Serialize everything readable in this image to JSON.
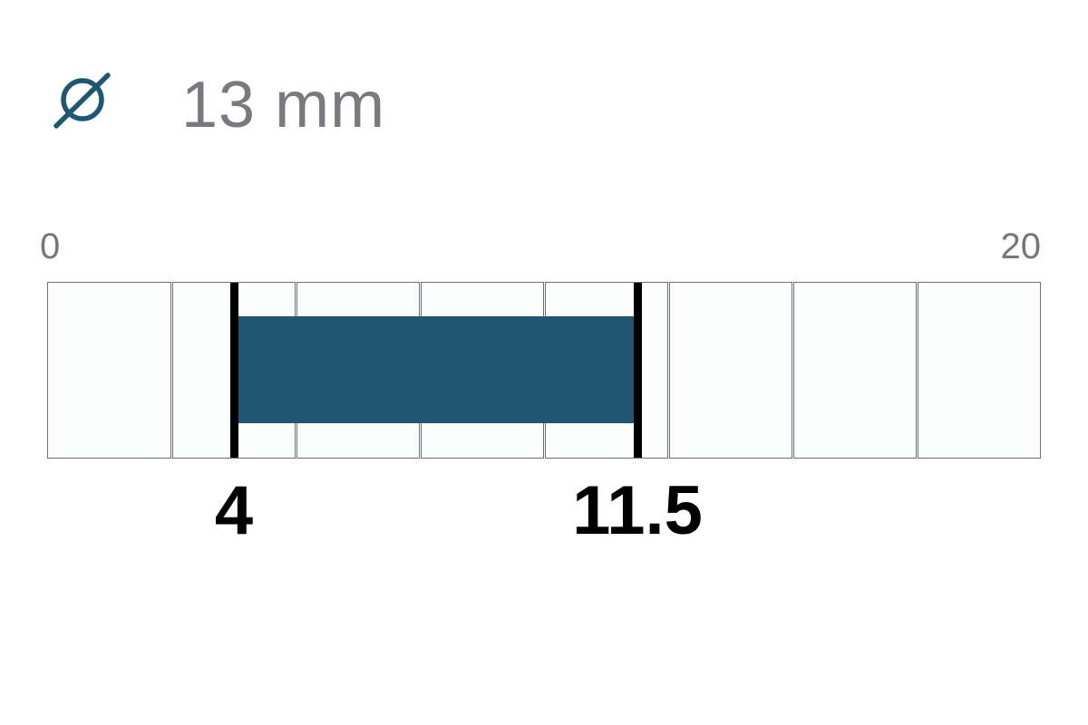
{
  "header": {
    "icon": "diameter-icon",
    "value_text": "13 mm"
  },
  "scale": {
    "min_label": "0",
    "max_label": "20",
    "min": 0,
    "max": 20,
    "segments": 8
  },
  "range": {
    "start": 4,
    "end": 11.5,
    "start_label": "4",
    "end_label": "11.5"
  },
  "colors": {
    "accent": "#1f5770",
    "title_text": "#7a7a7e",
    "marker": "#000000",
    "cell_fill": "#fcfefd",
    "cell_border": "#6e6e6e"
  }
}
